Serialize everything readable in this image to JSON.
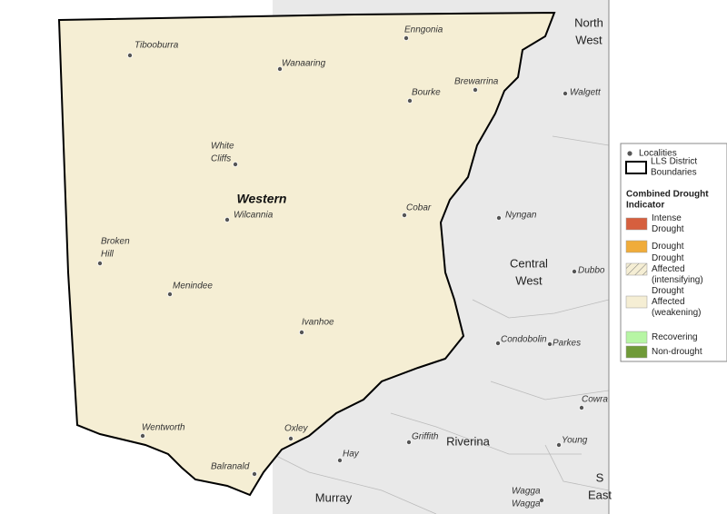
{
  "map": {
    "localities": [
      {
        "lines": [
          "Tibooburra"
        ]
      },
      {
        "lines": [
          "Enngonia"
        ]
      },
      {
        "lines": [
          "Wanaaring"
        ]
      },
      {
        "lines": [
          "Brewarrina"
        ]
      },
      {
        "lines": [
          "Bourke"
        ]
      },
      {
        "lines": [
          "Walgett"
        ]
      },
      {
        "lines": [
          "White",
          "Cliffs"
        ]
      },
      {
        "lines": [
          "Cobar"
        ]
      },
      {
        "lines": [
          "Nyngan"
        ]
      },
      {
        "lines": [
          "Wilcannia"
        ]
      },
      {
        "lines": [
          "Broken",
          "Hill"
        ]
      },
      {
        "lines": [
          "Dubbo"
        ]
      },
      {
        "lines": [
          "Menindee"
        ]
      },
      {
        "lines": [
          "Ivanhoe"
        ]
      },
      {
        "lines": [
          "Condobolin"
        ]
      },
      {
        "lines": [
          "Parkes"
        ]
      },
      {
        "lines": [
          "Cowra"
        ]
      },
      {
        "lines": [
          "Wentworth"
        ]
      },
      {
        "lines": [
          "Oxley"
        ]
      },
      {
        "lines": [
          "Griffith"
        ]
      },
      {
        "lines": [
          "Young"
        ]
      },
      {
        "lines": [
          "Hay"
        ]
      },
      {
        "lines": [
          "Balranald"
        ]
      },
      {
        "lines": [
          "Wagga",
          "Wagga"
        ]
      }
    ],
    "regions": [
      {
        "lines": [
          "North",
          "West"
        ]
      },
      {
        "lines": [
          "Western"
        ]
      },
      {
        "lines": [
          "Central",
          "West"
        ]
      },
      {
        "lines": [
          "Riverina"
        ]
      },
      {
        "lines": [
          "Murray"
        ]
      },
      {
        "lines": [
          "S",
          "East"
        ]
      }
    ]
  },
  "legend": {
    "localities": "Localities",
    "boundaries": [
      "LLS District",
      "Boundaries"
    ],
    "heading": [
      "Combined Drought",
      "Indicator"
    ],
    "items": [
      {
        "lines": [
          "Intense",
          "Drought"
        ],
        "color": "#d65f3e"
      },
      {
        "lines": [
          "Drought"
        ],
        "color": "#f0ac3a"
      },
      {
        "lines": [
          "Drought",
          "Affected",
          "(intensifying)"
        ],
        "color": "#f5eed4",
        "hatched": true
      },
      {
        "lines": [
          "Drought",
          "Affected",
          "(weakening)"
        ],
        "color": "#f5eed4"
      },
      {
        "lines": [
          "Recovering"
        ],
        "color": "#b7f5a4"
      },
      {
        "lines": [
          "Non-drought"
        ],
        "color": "#6f9a38"
      }
    ]
  }
}
